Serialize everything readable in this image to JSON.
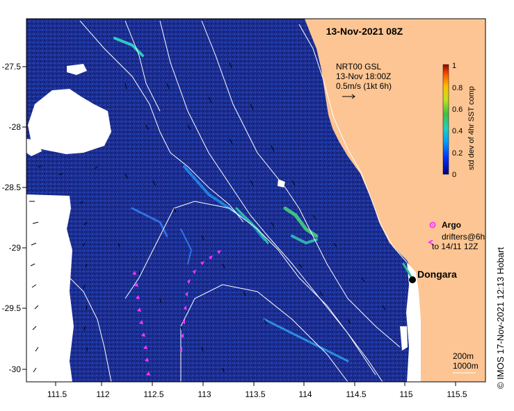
{
  "title": "13-Nov-2021 08Z",
  "product": {
    "line1": "NRT00 GSL",
    "line2": "13-Nov 18:00Z",
    "line3": "0.5m/s (1kt 6h)"
  },
  "colorbar": {
    "label": "std dev of 4hr SST comp",
    "ticks": [
      "1",
      "0.8",
      "0.6",
      "0.4",
      "0.2",
      "0"
    ]
  },
  "legend": {
    "argo": "Argo",
    "drifters_line1": "drifters@6h",
    "drifters_line2": "to 14/11 12Z",
    "argo_color": "#ff33ff",
    "drifter_color": "#ff33ff"
  },
  "place": {
    "name": "Dongara",
    "lon": 114.93,
    "lat": -29.25
  },
  "isobaths": {
    "line1": "200m",
    "line2": "1000m"
  },
  "credit": "© IMOS 17-Nov-2021 12:13 Hobart",
  "x_ticks": [
    "111.5",
    "112",
    "112.5",
    "113",
    "113.5",
    "114",
    "114.5",
    "115",
    "115.5"
  ],
  "y_ticks": [
    "-27.5",
    "-28",
    "-28.5",
    "-29",
    "-29.5",
    "-30"
  ],
  "colors": {
    "ocean": "#1a2a8a",
    "land": "#fcc593",
    "contour": "#ffffff",
    "cloud": "#ffffff"
  }
}
